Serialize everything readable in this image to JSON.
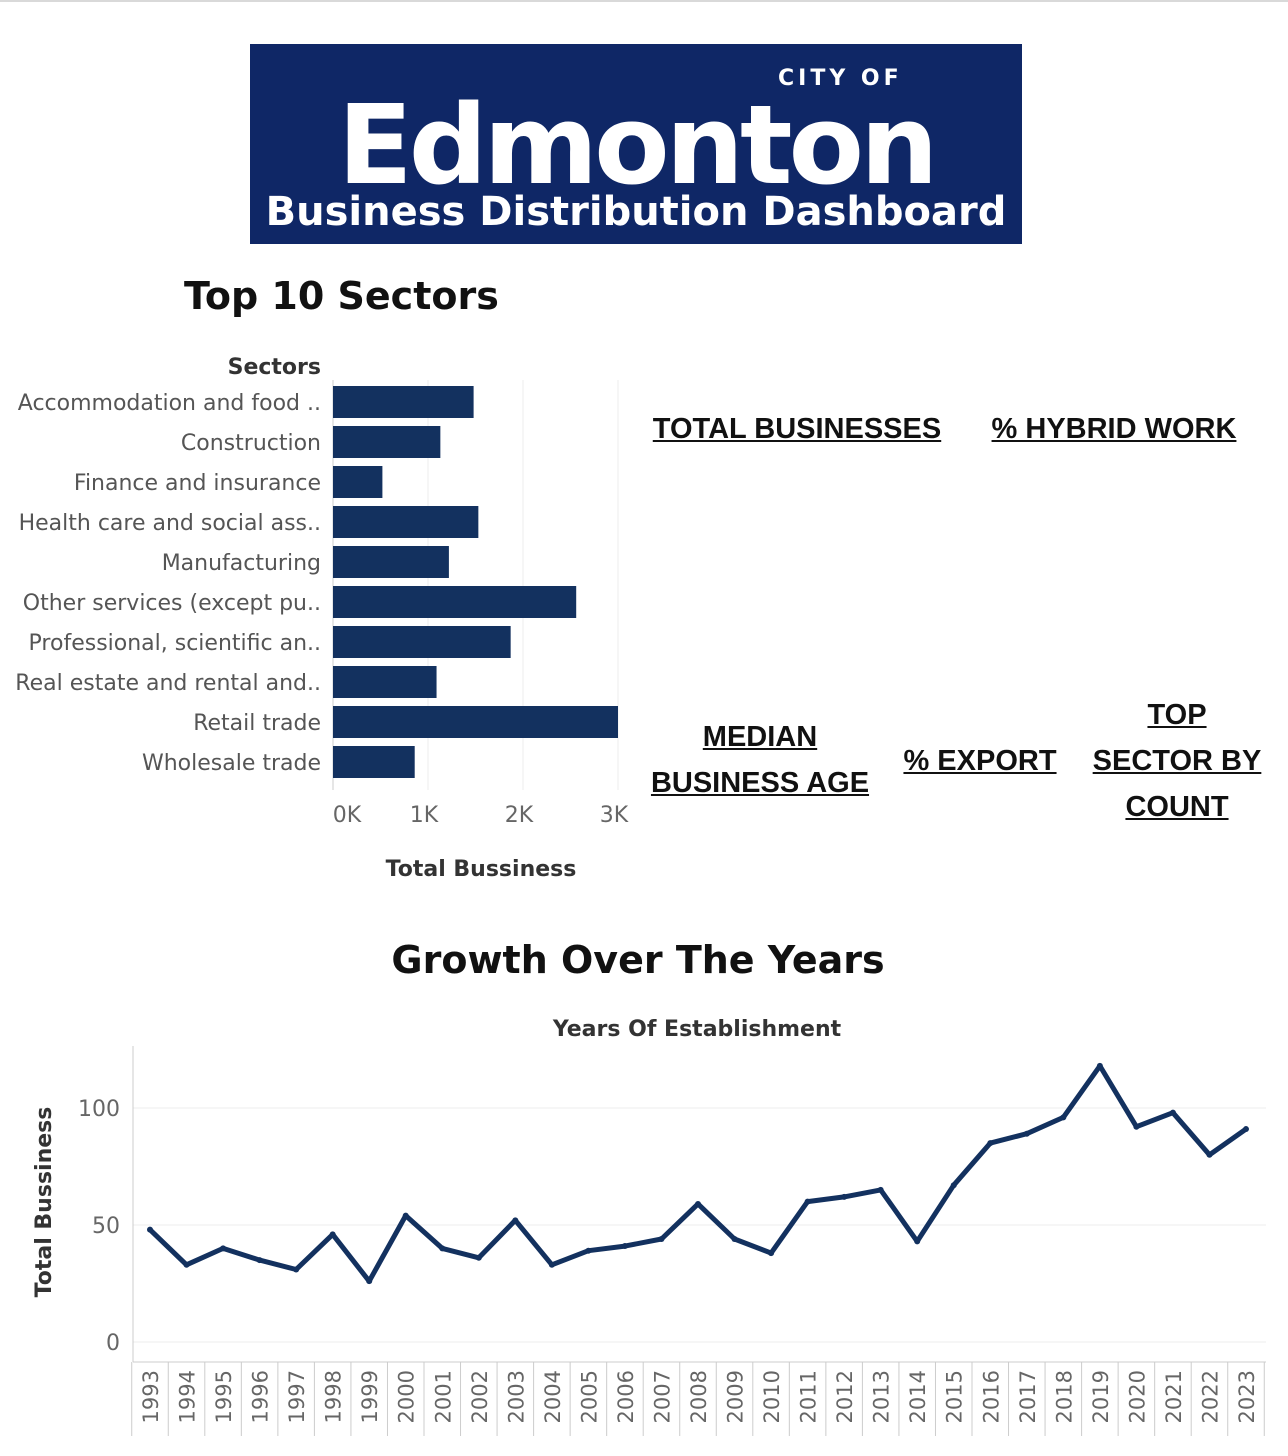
{
  "banner": {
    "city_of": "CITY OF",
    "logo_word": "Edmonton",
    "subtitle": "Business Distribution Dashboard"
  },
  "colors": {
    "banner": "#0f2766",
    "bar": "#13315f",
    "line": "#13315f"
  },
  "kpis": {
    "total_businesses": "TOTAL BUSINESSES",
    "hybrid_work": "% HYBRID WORK",
    "median_age": "MEDIAN BUSINESS AGE",
    "export": "% EXPORT",
    "top_sector": "TOP SECTOR BY COUNT"
  },
  "chart_data": [
    {
      "type": "bar",
      "orientation": "horizontal",
      "title": "Top 10 Sectors",
      "ylabel": "Sectors",
      "xlabel": "Total Bussiness",
      "categories": [
        "Accommodation and food ..",
        "Construction",
        "Finance and insurance",
        "Health care and social ass..",
        "Manufacturing",
        "Other services (except pu..",
        "Professional, scientific an..",
        "Real estate and rental and..",
        "Retail trade",
        "Wholesale trade"
      ],
      "values": [
        1480,
        1130,
        520,
        1530,
        1220,
        2560,
        1870,
        1090,
        3000,
        860
      ],
      "xlim": [
        0,
        3000
      ],
      "xticks": [
        0,
        1000,
        2000,
        3000
      ],
      "xtick_labels": [
        "0K",
        "1K",
        "2K",
        "3K"
      ],
      "grid": "vertical"
    },
    {
      "type": "line",
      "title": "Growth Over The Years",
      "xlabel": "Years Of Establishment",
      "ylabel": "Total Bussiness",
      "x": [
        "1993",
        "1994",
        "1995",
        "1996",
        "1997",
        "1998",
        "1999",
        "2000",
        "2001",
        "2002",
        "2003",
        "2004",
        "2005",
        "2006",
        "2007",
        "2008",
        "2009",
        "2010",
        "2011",
        "2012",
        "2013",
        "2014",
        "2015",
        "2016",
        "2017",
        "2018",
        "2019",
        "2020",
        "2021",
        "2022",
        "2023"
      ],
      "values": [
        48,
        33,
        40,
        35,
        31,
        46,
        26,
        54,
        40,
        36,
        52,
        33,
        39,
        41,
        44,
        59,
        44,
        38,
        60,
        62,
        65,
        43,
        67,
        85,
        89,
        96,
        118,
        92,
        98,
        80,
        91
      ],
      "ylim": [
        0,
        125
      ],
      "yticks": [
        0,
        50,
        100
      ],
      "grid": "horizontal"
    }
  ]
}
